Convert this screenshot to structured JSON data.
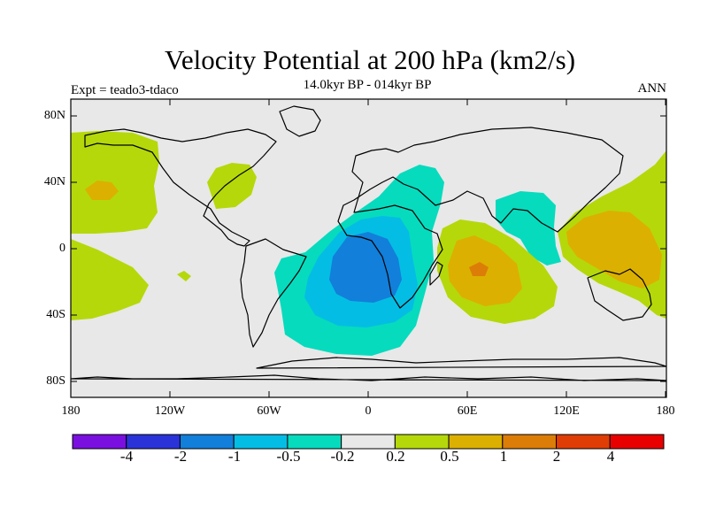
{
  "title": "Velocity Potential at 200 hPa (km2/s)",
  "subtitle": "14.0kyr BP - 014kyr BP",
  "left_label": "Expt = teado3-tdaco",
  "right_label": "ANN",
  "y_ticks": [
    "80N",
    "40N",
    "0",
    "40S",
    "80S"
  ],
  "x_ticks": [
    "180",
    "120W",
    "60W",
    "0",
    "60E",
    "120E",
    "180"
  ],
  "colorbar": {
    "labels": [
      "-4",
      "-2",
      "-1",
      "-0.5",
      "-0.2",
      "0.2",
      "0.5",
      "1",
      "2",
      "4"
    ],
    "colors": [
      "#7a10e0",
      "#2a33d8",
      "#127fda",
      "#04bde4",
      "#06dbbe",
      "#e8e8e8",
      "#b5d80a",
      "#dcb000",
      "#dc7d08",
      "#e03d06",
      "#e80000"
    ]
  },
  "chart_data": {
    "type": "filled-contour-map",
    "title": "Velocity Potential at 200 hPa (km2/s)",
    "subtitle": "14.0kyr BP - 014kyr BP",
    "season": "ANN",
    "experiment": "teado3-tdaco",
    "x_range": [
      -180,
      180
    ],
    "y_range": [
      -90,
      90
    ],
    "levels": [
      -4,
      -2,
      -1,
      -0.5,
      -0.2,
      0.2,
      0.5,
      1,
      2,
      4
    ],
    "features": [
      {
        "sign": "negative",
        "max_level": -1,
        "center_lon": -5,
        "center_lat": -15
      },
      {
        "sign": "negative",
        "max_level": -0.2,
        "center_lon": 95,
        "center_lat": 10
      },
      {
        "sign": "positive",
        "max_level": 1,
        "center_lon": 70,
        "center_lat": -10
      },
      {
        "sign": "positive",
        "max_level": 0.5,
        "center_lon": 150,
        "center_lat": 0
      },
      {
        "sign": "positive",
        "max_level": 0.5,
        "center_lon": -165,
        "center_lat": 35
      },
      {
        "sign": "positive",
        "max_level": 0.2,
        "center_lon": -85,
        "center_lat": 40
      }
    ]
  }
}
